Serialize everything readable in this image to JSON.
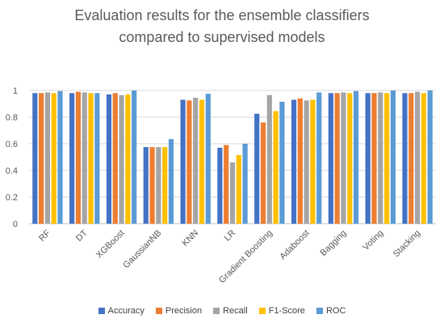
{
  "chart_data": {
    "type": "bar",
    "title": [
      "Evaluation results for the ensemble classifiers",
      "compared to supervised models"
    ],
    "xlabel": "",
    "ylabel": "",
    "ylim": [
      0,
      1
    ],
    "yticks": [
      "0",
      "0.2",
      "0.4",
      "0.6",
      "0.8",
      "1"
    ],
    "grid": true,
    "legend_position": "bottom",
    "categories": [
      "RF",
      "DT",
      "XGBoost",
      "GaussianNB",
      "KNN",
      "LR",
      "Gradient Boosting",
      "Adaboost",
      "Bagging",
      "Voting",
      "Stacking"
    ],
    "series": [
      {
        "name": "Accuracy",
        "color": "#4472C4",
        "values": [
          0.98,
          0.98,
          0.97,
          0.575,
          0.93,
          0.57,
          0.825,
          0.93,
          0.98,
          0.98,
          0.98
        ]
      },
      {
        "name": "Precision",
        "color": "#ED7D31",
        "values": [
          0.98,
          0.99,
          0.98,
          0.575,
          0.925,
          0.59,
          0.76,
          0.94,
          0.98,
          0.98,
          0.98
        ]
      },
      {
        "name": "Recall",
        "color": "#A5A5A5",
        "values": [
          0.985,
          0.985,
          0.965,
          0.575,
          0.945,
          0.46,
          0.965,
          0.925,
          0.985,
          0.985,
          0.99
        ]
      },
      {
        "name": "F1-Score",
        "color": "#FFC000",
        "values": [
          0.98,
          0.98,
          0.97,
          0.575,
          0.93,
          0.515,
          0.845,
          0.93,
          0.98,
          0.98,
          0.98
        ]
      },
      {
        "name": "ROC",
        "color": "#5B9BD5",
        "values": [
          0.995,
          0.98,
          1.0,
          0.635,
          0.975,
          0.6,
          0.915,
          0.985,
          0.995,
          1.0,
          1.0
        ]
      }
    ]
  }
}
